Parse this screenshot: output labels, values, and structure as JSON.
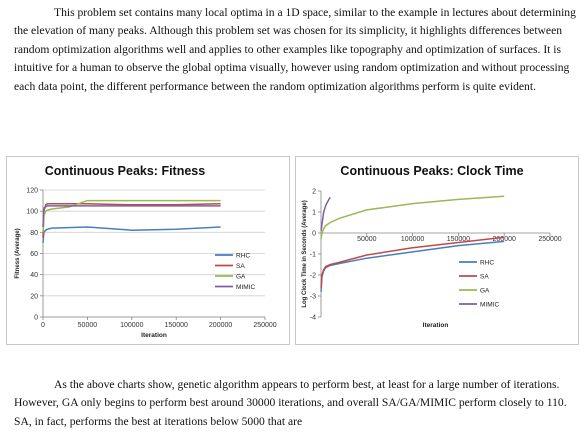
{
  "text": {
    "p1": "This problem set contains many local optima in a 1D space, similar to the example in lectures about determining the elevation of many peaks. Although this problem set was chosen for its simplicity, it highlights differences between random optimization algorithms well and applies to other examples like topography and optimization of surfaces. It is intuitive for a human to observe the global optima visually,  however using random optimization and without processing each data point, the different performance between the random optimization algorithms perform is quite evident.",
    "p2": "As the above charts show, genetic algorithm appears to perform best, at least for a large number of iterations. However, GA only begins to perform best around 30000 iterations, and overall SA/GA/MIMIC perform closely to 110. SA, in fact, performs the best at iterations below 5000 that are"
  },
  "colors": {
    "RHC": "#4a7ebb",
    "SA": "#be4b48",
    "GA": "#98b954",
    "MIMIC": "#7d60a0",
    "grid": "#d0d0d0",
    "axis": "#868686"
  },
  "chart_data": [
    {
      "type": "line",
      "title": "Continuous Peaks: Fitness",
      "xlabel": "Iteration",
      "ylabel": "Fitness (Average)",
      "xlim": [
        0,
        250000
      ],
      "ylim": [
        0,
        120
      ],
      "xticks": [
        "0",
        "50000",
        "100000",
        "150000",
        "200000",
        "250000"
      ],
      "yticks": [
        "0",
        "20",
        "40",
        "60",
        "80",
        "100",
        "120"
      ],
      "grid": true,
      "legend": "right",
      "series": [
        {
          "name": "RHC",
          "x": [
            0,
            1000,
            3000,
            5000,
            10000,
            50000,
            100000,
            150000,
            200000
          ],
          "y": [
            70,
            80,
            82,
            83,
            84,
            85,
            82,
            83,
            85
          ]
        },
        {
          "name": "SA",
          "x": [
            0,
            1000,
            3000,
            5000,
            10000,
            50000,
            100000,
            150000,
            200000
          ],
          "y": [
            75,
            100,
            106,
            107,
            107,
            107,
            106,
            106,
            107
          ]
        },
        {
          "name": "GA",
          "x": [
            0,
            1000,
            3000,
            5000,
            10000,
            30000,
            50000,
            100000,
            150000,
            200000
          ],
          "y": [
            80,
            96,
            100,
            101,
            102,
            104,
            110,
            110,
            110,
            110
          ]
        },
        {
          "name": "MIMIC",
          "x": [
            0,
            1000,
            3000,
            5000,
            10000,
            50000,
            100000,
            150000,
            200000
          ],
          "y": [
            85,
            103,
            104,
            105,
            105,
            105,
            105,
            105,
            105
          ]
        }
      ]
    },
    {
      "type": "line",
      "title": "Continuous Peaks: Clock Time",
      "xlabel": "Iteration",
      "ylabel": "Log Clock Time in Seconds (Average)",
      "xlim": [
        0,
        250000
      ],
      "ylim": [
        -4,
        2
      ],
      "xticks": [
        "50000",
        "100000",
        "150000",
        "200000",
        "250000"
      ],
      "yticks": [
        "-4",
        "-3",
        "-2",
        "-1",
        "0",
        "1",
        "2"
      ],
      "grid": false,
      "legend": "right",
      "series": [
        {
          "name": "RHC",
          "x": [
            100,
            1000,
            3000,
            5000,
            10000,
            20000,
            50000,
            100000,
            150000,
            200000
          ],
          "y": [
            -2.8,
            -2.1,
            -1.8,
            -1.65,
            -1.55,
            -1.45,
            -1.2,
            -0.9,
            -0.6,
            -0.4
          ]
        },
        {
          "name": "SA",
          "x": [
            100,
            1000,
            3000,
            5000,
            10000,
            20000,
            50000,
            100000,
            150000,
            200000
          ],
          "y": [
            -2.6,
            -2.0,
            -1.75,
            -1.6,
            -1.5,
            -1.4,
            -1.05,
            -0.7,
            -0.45,
            -0.2
          ]
        },
        {
          "name": "GA",
          "x": [
            100,
            1000,
            3000,
            5000,
            10000,
            20000,
            50000,
            100000,
            150000,
            200000
          ],
          "y": [
            -0.3,
            0.0,
            0.2,
            0.35,
            0.5,
            0.7,
            1.1,
            1.4,
            1.6,
            1.75
          ]
        },
        {
          "name": "MIMIC",
          "x": [
            100,
            1000,
            2000,
            3000,
            5000,
            8000,
            10000
          ],
          "y": [
            0.1,
            0.4,
            0.7,
            1.0,
            1.3,
            1.55,
            1.7
          ]
        }
      ]
    }
  ]
}
